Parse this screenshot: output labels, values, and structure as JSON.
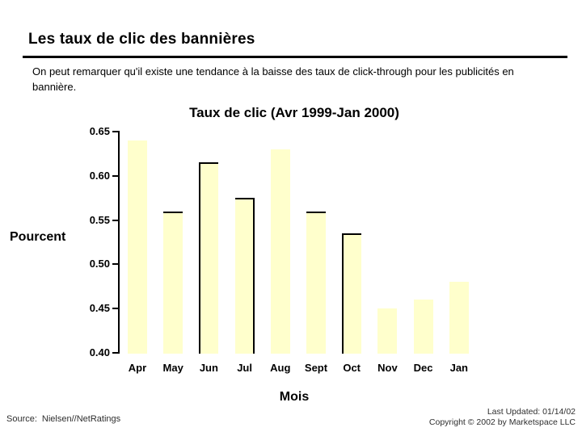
{
  "slide": {
    "title": "Les taux de clic des bannières",
    "body": "On peut remarquer qu'il existe une tendance à la baisse des taux de click-through pour les publicités en bannière.",
    "footer": {
      "source_label": "Source:",
      "source_value": "Nielsen//NetRatings",
      "last_updated": "Last Updated: 01/14/02",
      "copyright": "Copyright © 2002 by Marketspace LLC"
    }
  },
  "chart_data": {
    "type": "bar",
    "title": "Taux de clic (Avr 1999-Jan 2000)",
    "xlabel": "Mois",
    "ylabel": "Pourcent",
    "categories": [
      "Apr",
      "May",
      "Jun",
      "Jul",
      "Aug",
      "Sept",
      "Oct",
      "Nov",
      "Dec",
      "Jan"
    ],
    "values": [
      0.64,
      0.56,
      0.615,
      0.575,
      0.63,
      0.56,
      0.535,
      0.45,
      0.46,
      0.48
    ],
    "ylim": [
      0.4,
      0.65
    ],
    "yticks": [
      0.65,
      0.6,
      0.55,
      0.5,
      0.45,
      0.4
    ],
    "bar_color": "#FFFFCC",
    "bar_edges": [
      "none",
      "top",
      "top-left",
      "top-right",
      "none",
      "top",
      "top-left",
      "none",
      "none",
      "none"
    ],
    "grid": false,
    "legend": "none"
  }
}
